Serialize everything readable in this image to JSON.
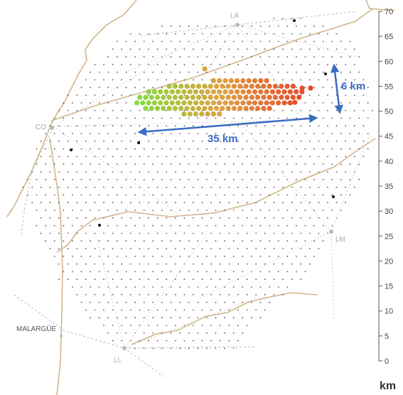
{
  "stations": [
    {
      "id": "LA",
      "label": "LA"
    },
    {
      "id": "CO",
      "label": "CO"
    },
    {
      "id": "LM",
      "label": "LM"
    },
    {
      "id": "LL",
      "label": "LL"
    }
  ],
  "town": {
    "label": "MALARGÜE"
  },
  "scale": {
    "unit": "km",
    "ticks": [
      0,
      5,
      10,
      15,
      20,
      25,
      30,
      35,
      40,
      45,
      50,
      55,
      60,
      65,
      70
    ]
  },
  "dimensions": {
    "length_label": "35 km",
    "width_label": "6 km"
  },
  "colors": {
    "arrow": "#3a6cc0",
    "border": "#d2b58c",
    "grid_dot": "#555555",
    "event_start": "#7fe040",
    "event_mid": "#e0a040",
    "event_end": "#e8402a"
  }
}
